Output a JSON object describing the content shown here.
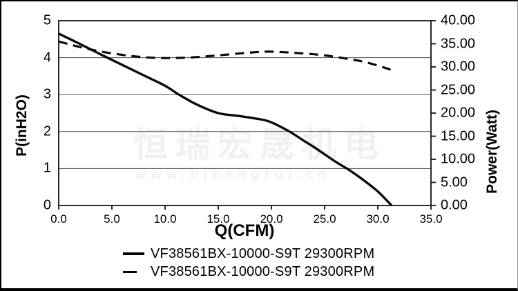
{
  "watermark": {
    "text_cn": "恒瑞宏晟机电",
    "text_url": "www.bjhengrui.cn"
  },
  "colors": {
    "curve": "#0a0a0a",
    "grid": "#4a4a4a",
    "frame": "#111111",
    "watermark": "#f1f1f1",
    "background": "#ffffff"
  },
  "chart_data": {
    "type": "line",
    "title": "",
    "grid": "horizontal-only",
    "legend_position": "bottom",
    "x_axis": {
      "label": "Q(CFM)",
      "min": 0,
      "max": 35,
      "tick_labels": [
        "0.0",
        "5.0",
        "10.0",
        "15.0",
        "20.0",
        "25.0",
        "30.0",
        "35.0"
      ]
    },
    "y_left": {
      "label": "P(inH2O)",
      "min": 0,
      "max": 5,
      "tick_labels": [
        "5",
        "4",
        "3",
        "2",
        "1",
        "0"
      ],
      "gridline_values": [
        4,
        3,
        2,
        1
      ]
    },
    "y_right": {
      "label": "Power(Watt)",
      "min": 0,
      "max": 40,
      "tick_labels": [
        "40.00",
        "35.00",
        "30.00",
        "25.00",
        "20.00",
        "15.00",
        "10.00",
        "5.00",
        "0.00"
      ]
    },
    "series": [
      {
        "name": "VF38561BX-10000-S9T 29300RPM",
        "style": "solid",
        "axis": "left",
        "points": [
          [
            0,
            4.65
          ],
          [
            2,
            4.37
          ],
          [
            4,
            4.08
          ],
          [
            6,
            3.8
          ],
          [
            8,
            3.52
          ],
          [
            10,
            3.24
          ],
          [
            11.3,
            3.0
          ],
          [
            13,
            2.73
          ],
          [
            15,
            2.5
          ],
          [
            17,
            2.42
          ],
          [
            19,
            2.33
          ],
          [
            20,
            2.25
          ],
          [
            21.7,
            2.0
          ],
          [
            23,
            1.76
          ],
          [
            24,
            1.58
          ],
          [
            26,
            1.19
          ],
          [
            27.2,
            0.98
          ],
          [
            28.5,
            0.72
          ],
          [
            30,
            0.38
          ],
          [
            31.3,
            0.0
          ]
        ]
      },
      {
        "name": "VF38561BX-10000-S9T 29300RPM",
        "style": "dashed",
        "axis": "right",
        "points": [
          [
            0,
            35.5
          ],
          [
            2,
            34.3
          ],
          [
            4,
            33.3
          ],
          [
            6,
            32.6
          ],
          [
            8,
            32.1
          ],
          [
            10,
            31.9
          ],
          [
            12,
            32.0
          ],
          [
            14,
            32.3
          ],
          [
            16,
            32.7
          ],
          [
            18,
            33.1
          ],
          [
            19.5,
            33.3
          ],
          [
            21,
            33.2
          ],
          [
            23,
            32.9
          ],
          [
            25,
            32.5
          ],
          [
            27,
            31.8
          ],
          [
            28.5,
            31.2
          ],
          [
            30,
            30.3
          ],
          [
            31.2,
            29.4
          ]
        ]
      }
    ]
  }
}
